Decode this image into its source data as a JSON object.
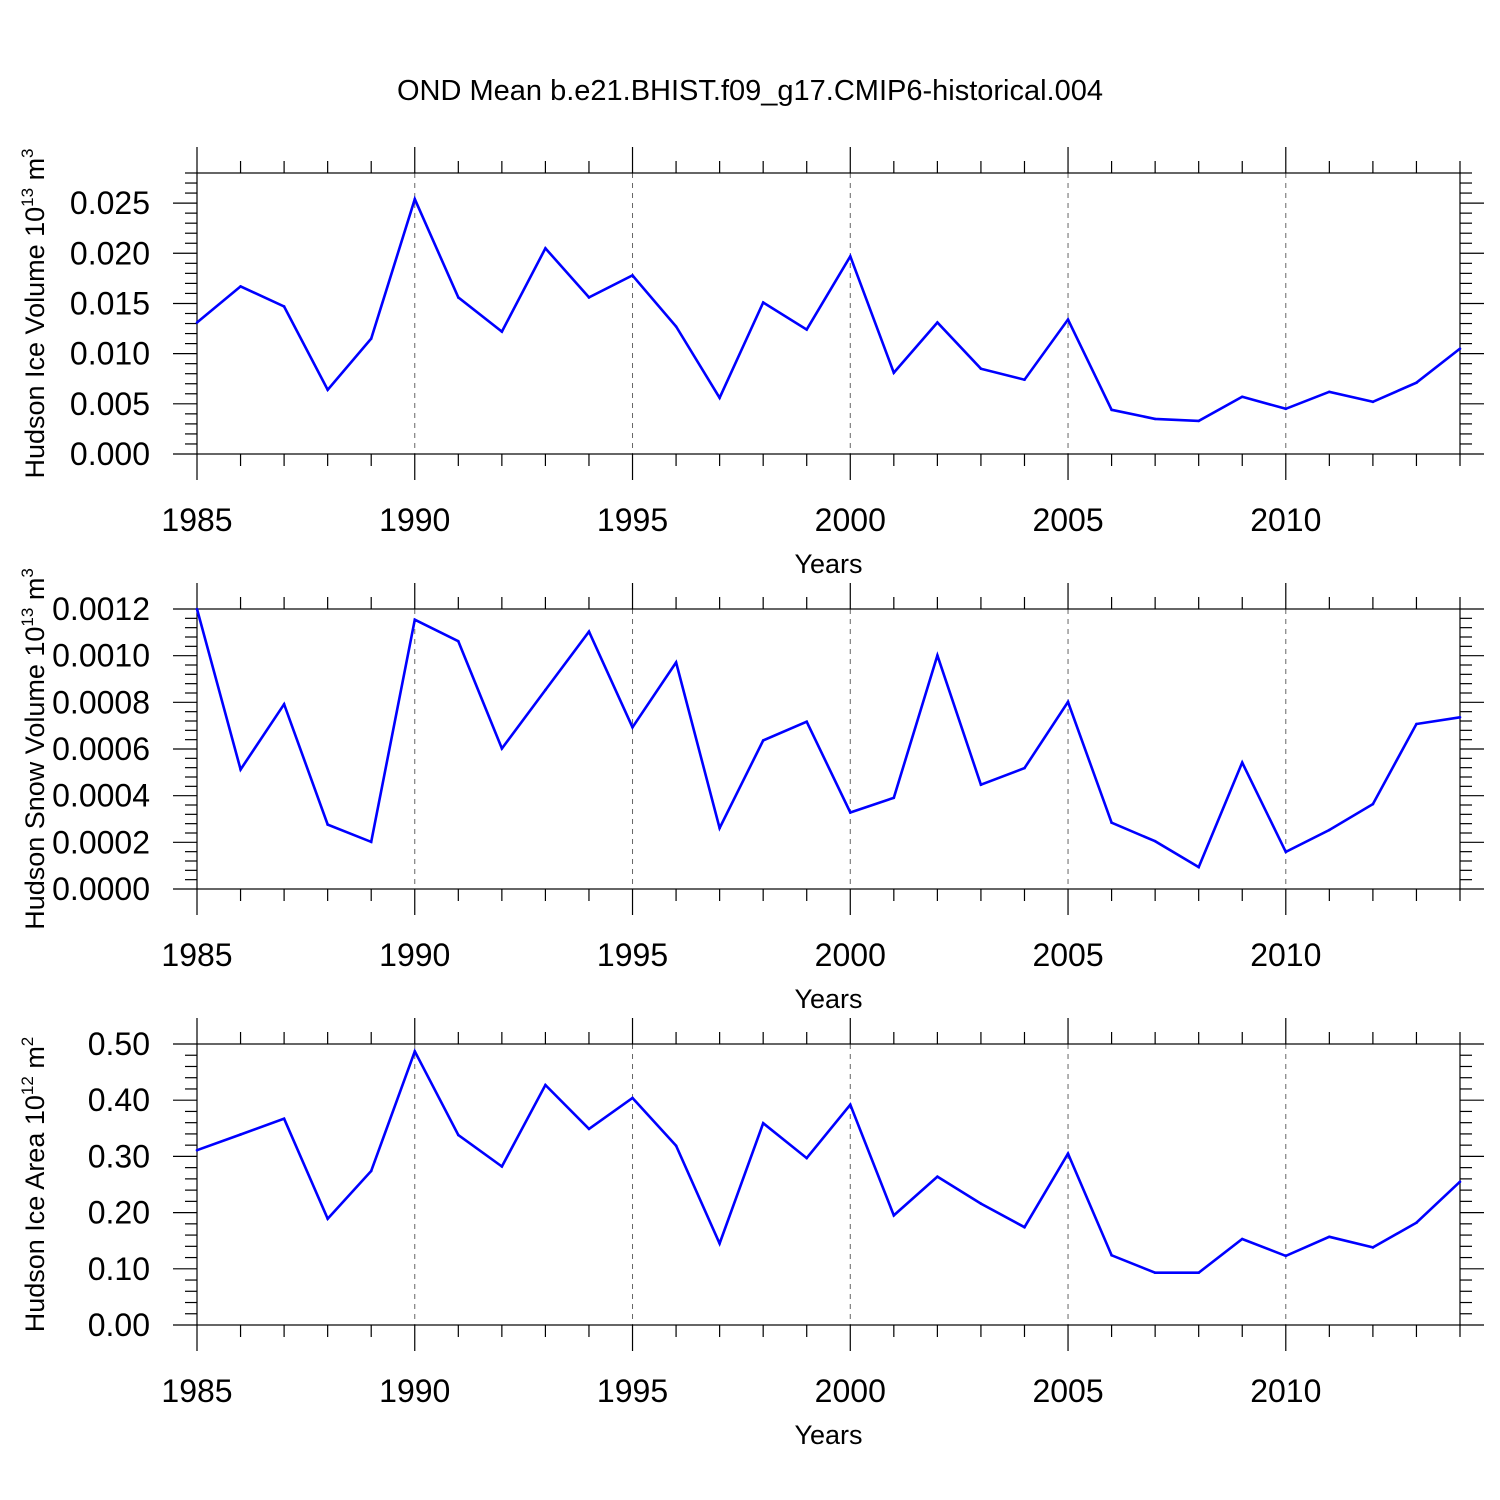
{
  "title": "OND Mean b.e21.BHIST.f09_g17.CMIP6-historical.004",
  "line_color": "#0000ff",
  "chart_data": [
    {
      "type": "line",
      "ylabel": "Hudson Ice Volume 10",
      "ylabel_exp": "13",
      "ylabel_unit": "m",
      "ylabel_unit_exp": "3",
      "xlabel": "Years",
      "xlim": [
        1985,
        2014
      ],
      "xticks": [
        1985,
        1990,
        1995,
        2000,
        2005,
        2010
      ],
      "xtick_labels": [
        "1985",
        "1990",
        "1995",
        "2000",
        "2005",
        "2010"
      ],
      "ylim": [
        0,
        0.028
      ],
      "yticks": [
        0,
        0.005,
        0.01,
        0.015,
        0.02,
        0.025
      ],
      "ytick_labels": [
        "0.000",
        "0.005",
        "0.010",
        "0.015",
        "0.020",
        "0.025"
      ],
      "grid": "vertical dashed at major x ticks",
      "x": [
        1985,
        1986,
        1987,
        1988,
        1989,
        1990,
        1991,
        1992,
        1993,
        1994,
        1995,
        1996,
        1997,
        1998,
        1999,
        2000,
        2001,
        2002,
        2003,
        2004,
        2005,
        2006,
        2007,
        2008,
        2009,
        2010,
        2011,
        2012,
        2013,
        2014
      ],
      "y": [
        0.0131,
        0.0167,
        0.0147,
        0.0064,
        0.0115,
        0.0254,
        0.0156,
        0.0122,
        0.0205,
        0.0156,
        0.0178,
        0.0127,
        0.0056,
        0.0151,
        0.0124,
        0.0197,
        0.0081,
        0.0131,
        0.0085,
        0.0074,
        0.0134,
        0.0044,
        0.0035,
        0.0033,
        0.0057,
        0.0045,
        0.0062,
        0.0052,
        0.0071,
        0.0105
      ]
    },
    {
      "type": "line",
      "ylabel": "Hudson Snow Volume 10",
      "ylabel_exp": "13",
      "ylabel_unit": "m",
      "ylabel_unit_exp": "3",
      "xlabel": "Years",
      "xlim": [
        1985,
        2014
      ],
      "xticks": [
        1985,
        1990,
        1995,
        2000,
        2005,
        2010
      ],
      "xtick_labels": [
        "1985",
        "1990",
        "1995",
        "2000",
        "2005",
        "2010"
      ],
      "ylim": [
        0,
        0.0012
      ],
      "yticks": [
        0,
        0.0002,
        0.0004,
        0.0006,
        0.0008,
        0.001,
        0.0012
      ],
      "ytick_labels": [
        "0.0000",
        "0.0002",
        "0.0004",
        "0.0006",
        "0.0008",
        "0.0010",
        "0.0012"
      ],
      "grid": "vertical dashed at major x ticks",
      "x": [
        1985,
        1986,
        1987,
        1988,
        1989,
        1990,
        1991,
        1992,
        1993,
        1994,
        1995,
        1996,
        1997,
        1998,
        1999,
        2000,
        2001,
        2002,
        2003,
        2004,
        2005,
        2006,
        2007,
        2008,
        2009,
        2010,
        2011,
        2012,
        2013,
        2014
      ],
      "y": [
        0.0012,
        0.000512,
        0.000792,
        0.000276,
        0.000202,
        0.001154,
        0.001062,
        0.000602,
        0.000853,
        0.001103,
        0.000693,
        0.000971,
        0.000261,
        0.000637,
        0.000717,
        0.000328,
        0.000391,
        0.001001,
        0.000447,
        0.000518,
        0.000802,
        0.000284,
        0.000205,
        9.4e-05,
        0.000542,
        0.000159,
        0.000253,
        0.000364,
        0.000707,
        0.000736
      ]
    },
    {
      "type": "line",
      "ylabel": "Hudson Ice Area 10",
      "ylabel_exp": "12",
      "ylabel_unit": "m",
      "ylabel_unit_exp": "2",
      "xlabel": "Years",
      "xlim": [
        1985,
        2014
      ],
      "xticks": [
        1985,
        1990,
        1995,
        2000,
        2005,
        2010
      ],
      "xtick_labels": [
        "1985",
        "1990",
        "1995",
        "2000",
        "2005",
        "2010"
      ],
      "ylim": [
        0,
        0.5
      ],
      "yticks": [
        0,
        0.1,
        0.2,
        0.3,
        0.4,
        0.5
      ],
      "ytick_labels": [
        "0.00",
        "0.10",
        "0.20",
        "0.30",
        "0.40",
        "0.50"
      ],
      "grid": "vertical dashed at major x ticks",
      "x": [
        1985,
        1986,
        1987,
        1988,
        1989,
        1990,
        1991,
        1992,
        1993,
        1994,
        1995,
        1996,
        1997,
        1998,
        1999,
        2000,
        2001,
        2002,
        2003,
        2004,
        2005,
        2006,
        2007,
        2008,
        2009,
        2010,
        2011,
        2012,
        2013,
        2014
      ],
      "y": [
        0.311,
        0.339,
        0.367,
        0.189,
        0.274,
        0.487,
        0.338,
        0.282,
        0.427,
        0.349,
        0.404,
        0.319,
        0.145,
        0.359,
        0.297,
        0.392,
        0.195,
        0.264,
        0.216,
        0.174,
        0.305,
        0.124,
        0.093,
        0.093,
        0.153,
        0.123,
        0.157,
        0.138,
        0.182,
        0.255
      ]
    }
  ]
}
